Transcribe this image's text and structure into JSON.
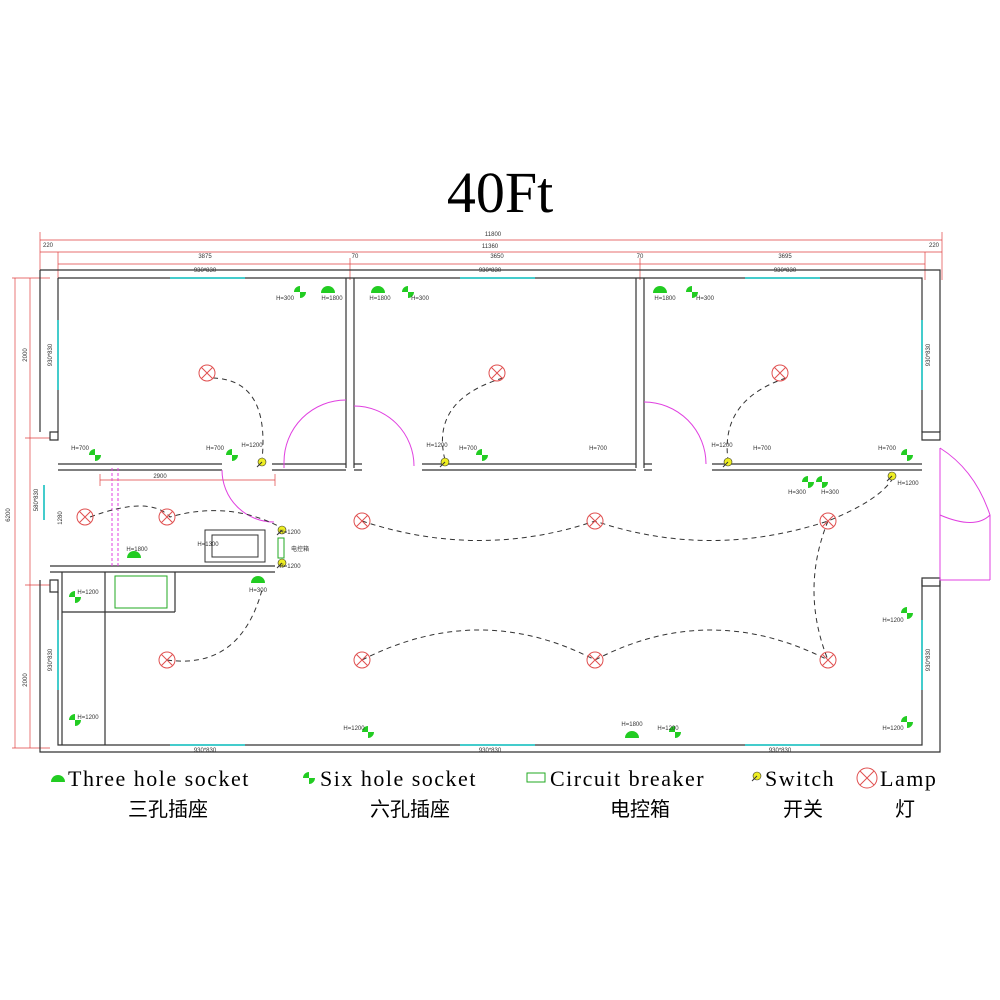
{
  "title": "40Ft",
  "dimensions": [
    "11800",
    "220",
    "11360",
    "220",
    "3875",
    "70",
    "3650",
    "70",
    "3695",
    "2900",
    "6200",
    "2000",
    "1280",
    "2000"
  ],
  "windows": [
    "930*830",
    "930*830",
    "930*830",
    "930*830",
    "930*830",
    "930*830",
    "930*830",
    "580*830",
    "930*830",
    "930*830",
    "930*830"
  ],
  "labels": [
    "H=300",
    "H=1800",
    "H=1800",
    "H=300",
    "H=1800",
    "H=300",
    "H=700",
    "H=700",
    "H=1200",
    "H=1200",
    "H=700",
    "H=700",
    "H=1200",
    "H=700",
    "H=700",
    "H=300",
    "H=300",
    "H=1200",
    "H=1200",
    "电控箱",
    "H=1200",
    "H=1300",
    "H=300",
    "H=1800",
    "H=1200",
    "H=1200",
    "H=1200",
    "H=1800",
    "H=1200",
    "H=1200",
    "H=1200"
  ],
  "legend": [
    {
      "en": "Three hole socket",
      "zh": "三孔插座"
    },
    {
      "en": "Six hole socket",
      "zh": "六孔插座"
    },
    {
      "en": "Circuit breaker",
      "zh": "电控箱"
    },
    {
      "en": "Switch",
      "zh": "开关"
    },
    {
      "en": "Lamp",
      "zh": "灯"
    }
  ]
}
